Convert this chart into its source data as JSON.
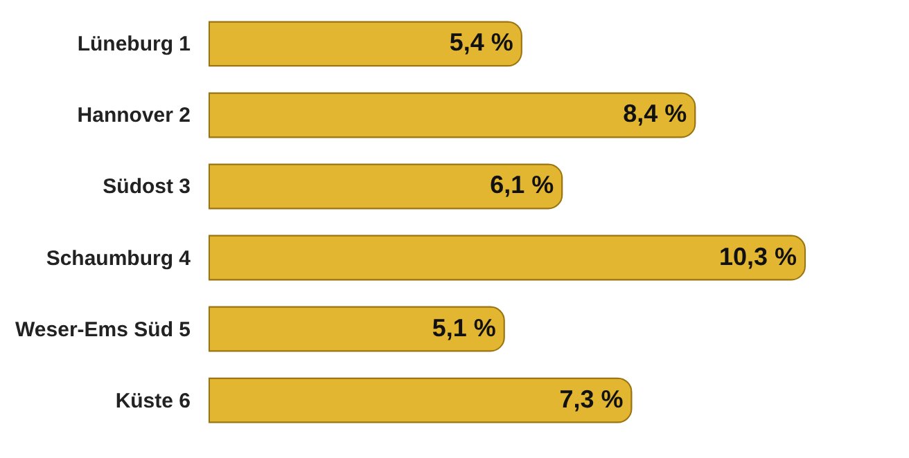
{
  "chart_data": {
    "type": "bar",
    "orientation": "horizontal",
    "categories": [
      "Lüneburg 1",
      "Hannover 2",
      "Südost 3",
      "Schaumburg 4",
      "Weser-Ems Süd 5",
      "Küste 6"
    ],
    "values": [
      5.4,
      8.4,
      6.1,
      10.3,
      5.1,
      7.3
    ],
    "value_labels": [
      "5,4 %",
      "8,4 %",
      "6,1 %",
      "10,3 %",
      "5,1 %",
      "7,3 %"
    ],
    "color": "#e2b631",
    "tick_labels": "y"
  }
}
